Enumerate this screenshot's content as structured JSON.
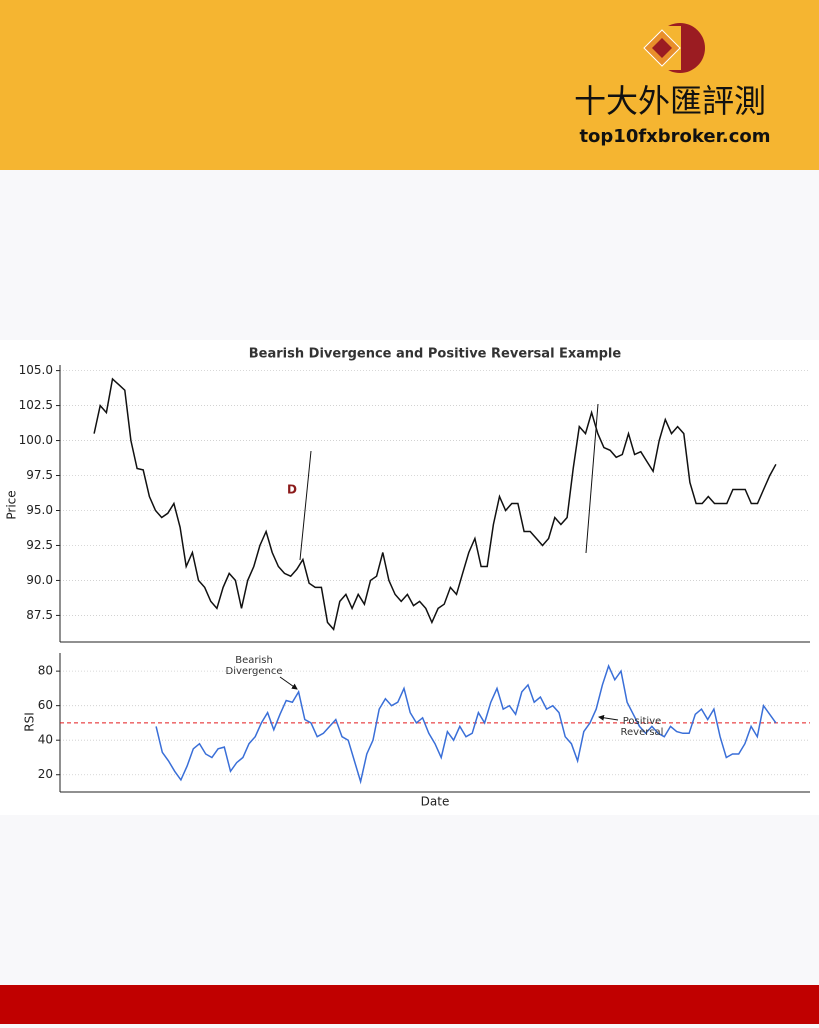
{
  "header": {
    "brand": "十大外匯評測",
    "site": "top10fxbroker.com"
  },
  "chart_data": [
    {
      "type": "line",
      "title": "Bearish Divergence and Positive Reversal Example",
      "ylabel": "Price",
      "ylim": [
        85.6,
        105.4
      ],
      "yticks": [
        {
          "value": 87.5,
          "label": "87.5"
        },
        {
          "value": 90,
          "label": "90.0"
        },
        {
          "value": 92.5,
          "label": "92.5"
        },
        {
          "value": 95,
          "label": "95.0"
        },
        {
          "value": 97.5,
          "label": "97.5"
        },
        {
          "value": 100,
          "label": "100.0"
        },
        {
          "value": 102.5,
          "label": "102.5"
        },
        {
          "value": 105,
          "label": "105.0"
        }
      ],
      "grid": true,
      "series": [
        {
          "name": "Price",
          "color": "#111111",
          "values": [
            100.5,
            102.5,
            102,
            104.4,
            104,
            103.6,
            100,
            98,
            97.9,
            96,
            95,
            94.5,
            94.8,
            95.5,
            93.8,
            91,
            92,
            90,
            89.5,
            88.5,
            88,
            89.5,
            90.5,
            90,
            88,
            90,
            91,
            92.5,
            93.5,
            92,
            91,
            90.5,
            90.3,
            90.8,
            91.5,
            89.8,
            89.5,
            89.5,
            87,
            86.5,
            88.5,
            89,
            88,
            89,
            88.3,
            90,
            90.3,
            92,
            90,
            89,
            88.5,
            89,
            88.2,
            88.5,
            88,
            87,
            88,
            88.3,
            89.5,
            89,
            90.5,
            92,
            93,
            91,
            91,
            94,
            96,
            95,
            95.5,
            95.5,
            93.5,
            93.5,
            93,
            92.5,
            93,
            94.5,
            94,
            94.5,
            98,
            101,
            100.5,
            102,
            100.5,
            99.5,
            99.3,
            98.8,
            99,
            100.5,
            99,
            99.2,
            98.5,
            97.8,
            100,
            101.5,
            100.5,
            101,
            100.5,
            97,
            95.5,
            95.5,
            96,
            95.5,
            95.5,
            95.5,
            96.5,
            96.5,
            96.5,
            95.5,
            95.5,
            96.5,
            97.5,
            98.3
          ]
        }
      ],
      "annotations": [
        {
          "text": "D",
          "color": "#8b1a1a"
        }
      ]
    },
    {
      "type": "line",
      "ylabel": "RSI",
      "xlabel": "Date",
      "ylim": [
        10,
        90.5
      ],
      "yticks": [
        20,
        40,
        60,
        80
      ],
      "grid": true,
      "hline": {
        "value": 50,
        "color": "#e41a1c"
      },
      "series": [
        {
          "name": "RSI",
          "color": "#3a6fd8",
          "values": [
            null,
            null,
            null,
            null,
            null,
            null,
            null,
            null,
            null,
            null,
            48,
            33,
            28,
            22,
            17,
            25,
            35,
            38,
            32,
            30,
            35,
            36,
            22,
            27,
            30,
            38,
            42,
            50,
            56,
            46,
            55,
            63,
            62,
            68,
            52,
            50,
            42,
            44,
            48,
            52,
            42,
            40,
            28,
            16,
            32,
            40,
            58,
            64,
            60,
            62,
            70,
            56,
            50,
            53,
            44,
            38,
            30,
            45,
            40,
            48,
            42,
            44,
            56,
            50,
            62,
            70,
            58,
            60,
            55,
            68,
            72,
            62,
            65,
            58,
            60,
            56,
            42,
            38,
            28,
            45,
            50,
            58,
            72,
            83,
            75,
            80,
            62,
            55,
            48,
            44,
            48,
            44,
            42,
            48,
            45,
            44,
            44,
            55,
            58,
            52,
            58,
            42,
            30,
            32,
            32,
            38,
            48,
            42,
            60,
            55,
            50
          ]
        }
      ],
      "annotations": [
        {
          "lines": [
            "Bearish",
            "Divergence"
          ]
        },
        {
          "lines": [
            "Positive",
            "Reversal"
          ]
        }
      ]
    }
  ]
}
